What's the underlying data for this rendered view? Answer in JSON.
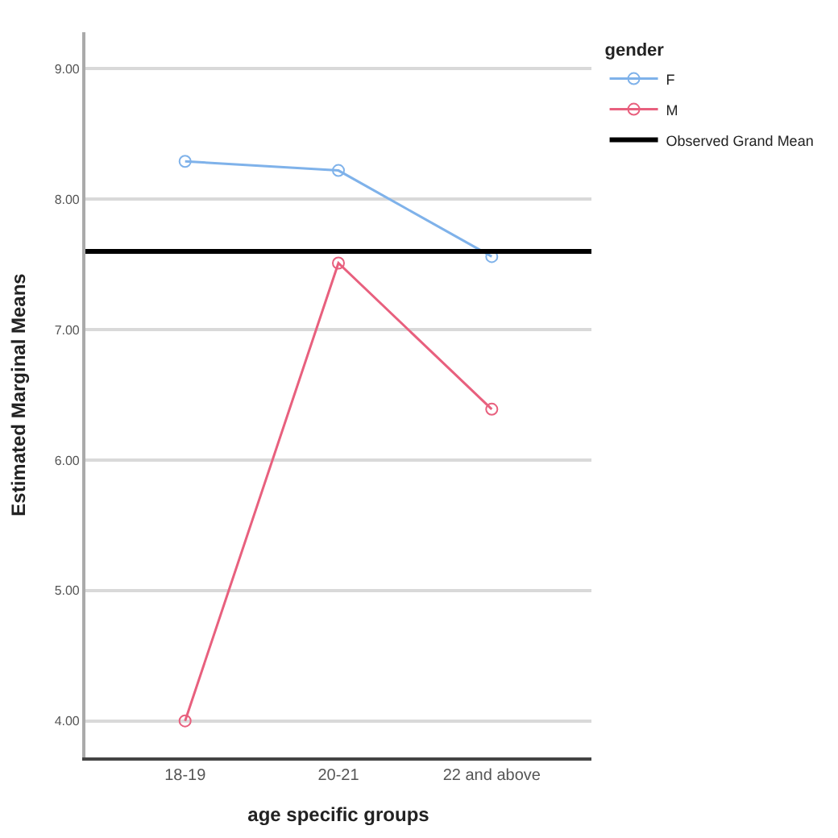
{
  "chart_data": {
    "type": "line",
    "xlabel": "age specific groups",
    "ylabel": "Estimated Marginal Means",
    "legend_title": "gender",
    "categories": [
      "18-19",
      "20-21",
      "22 and above"
    ],
    "series": [
      {
        "name": "F",
        "color": "#7fb2ea",
        "values": [
          8.29,
          8.22,
          7.56
        ]
      },
      {
        "name": "M",
        "color": "#e8607e",
        "values": [
          4.0,
          7.51,
          6.39
        ]
      }
    ],
    "ref_lines": [
      {
        "axis": "y",
        "value": 7.6,
        "label": "Observed Grand Mean",
        "color": "#000000"
      }
    ],
    "ylim": [
      3.72,
      9.28
    ],
    "yticks": [
      {
        "value": 4,
        "label": "4.00"
      },
      {
        "value": 5,
        "label": "5.00"
      },
      {
        "value": 6,
        "label": "6.00"
      },
      {
        "value": 7,
        "label": "7.00"
      },
      {
        "value": 8,
        "label": "8.00"
      },
      {
        "value": 9,
        "label": "9.00"
      }
    ],
    "grid": "y",
    "legend": "top right",
    "marker": "circle",
    "line_style": "solid"
  }
}
